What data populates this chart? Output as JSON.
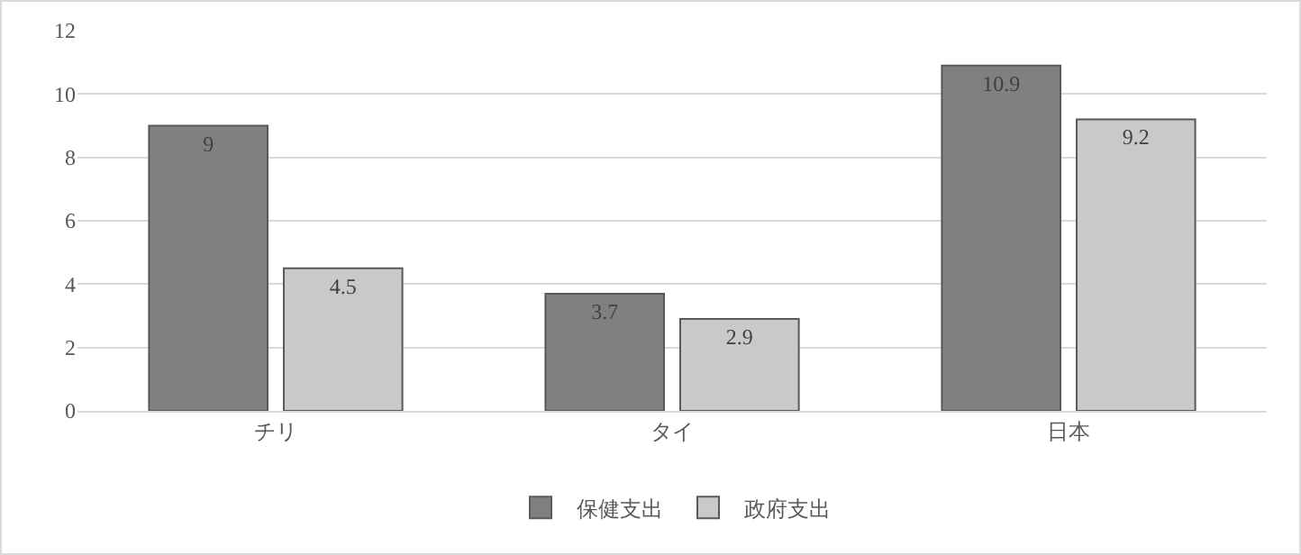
{
  "chart_data": {
    "type": "bar",
    "categories": [
      "チリ",
      "タイ",
      "日本"
    ],
    "series": [
      {
        "name": "保健支出",
        "color": "#808080",
        "values": [
          9,
          3.7,
          10.9
        ]
      },
      {
        "name": "政府支出",
        "color": "#c9c9c9",
        "values": [
          4.5,
          2.9,
          9.2
        ]
      }
    ],
    "ylim": [
      0,
      12
    ],
    "yticks": [
      0,
      2,
      4,
      6,
      8,
      10,
      12
    ],
    "grid": "y",
    "legend": "bottom",
    "data_labels": true
  }
}
